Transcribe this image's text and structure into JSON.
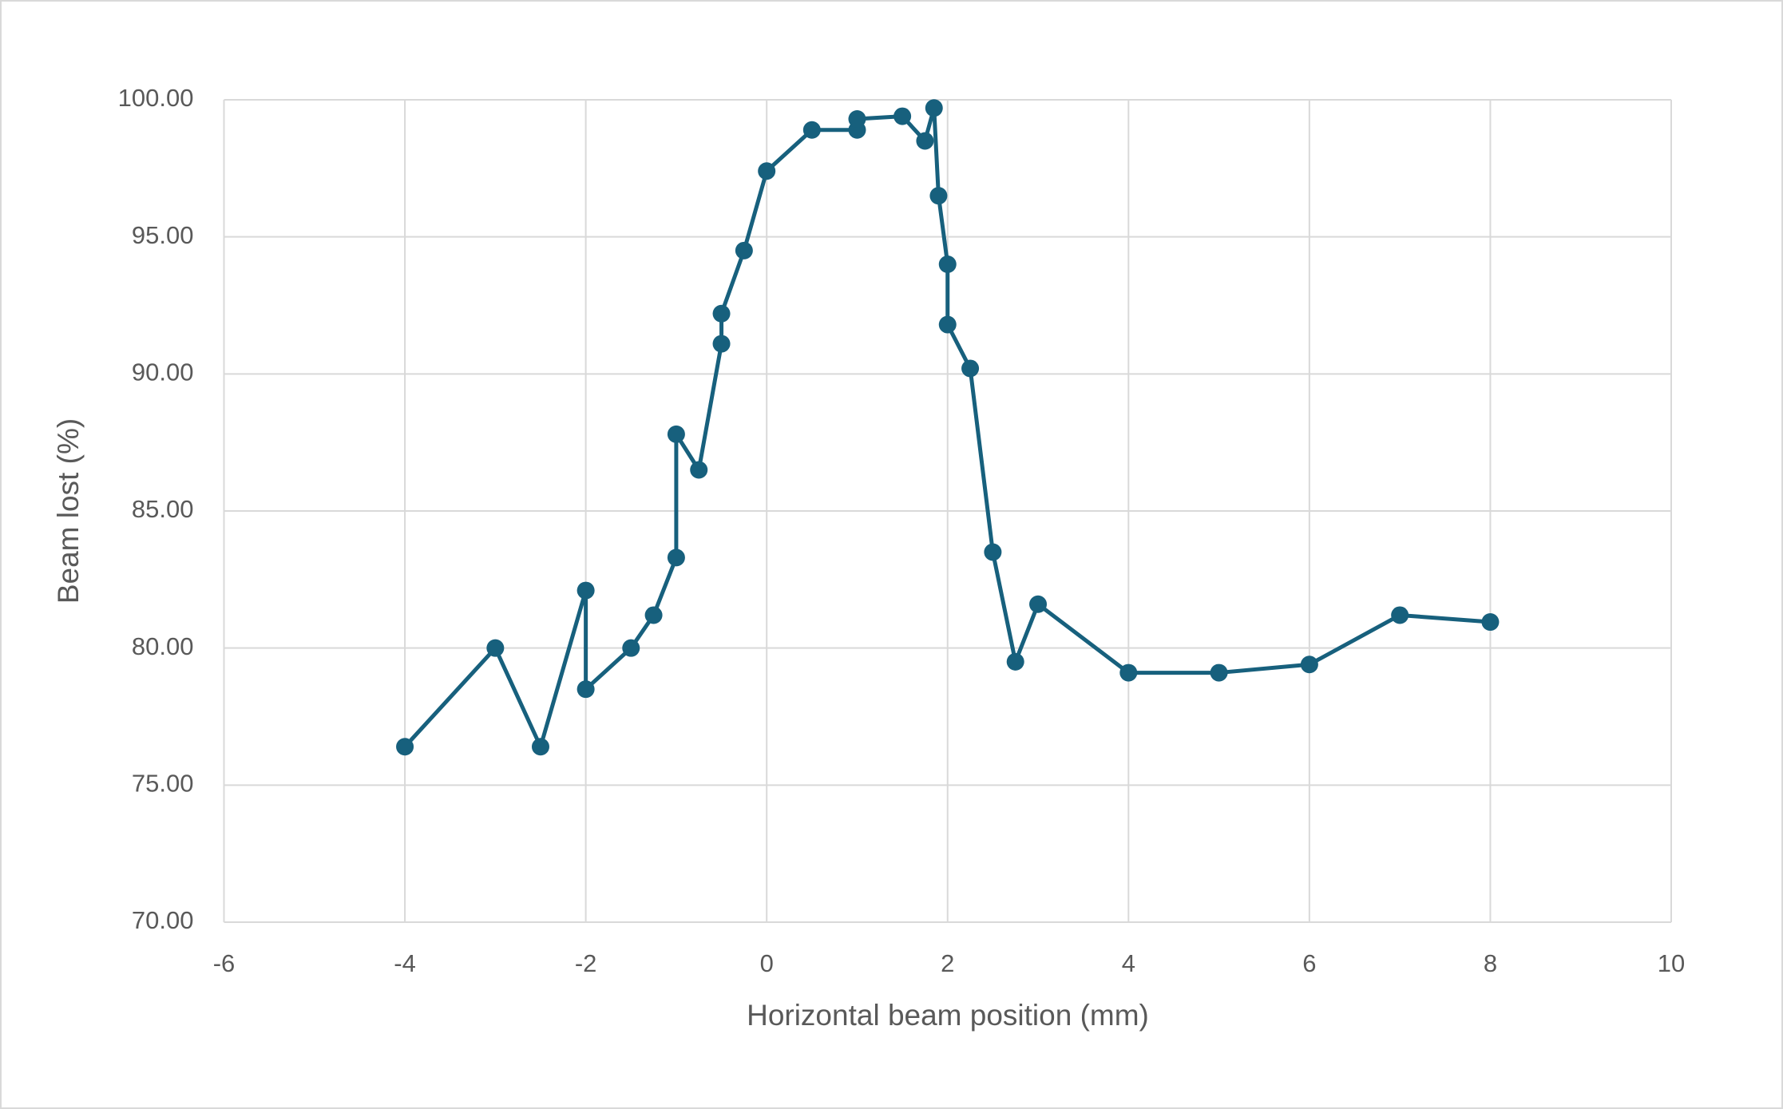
{
  "chart_data": {
    "type": "scatter",
    "x_label": "Horizontal beam position (mm)",
    "y_label": "Beam lost (%)",
    "x": [
      -4,
      -3,
      -2.5,
      -2,
      -2,
      -1.5,
      -1.25,
      -1,
      -1,
      -0.75,
      -0.5,
      -0.5,
      -0.25,
      0,
      0.5,
      1,
      1,
      1.5,
      1.75,
      1.85,
      1.9,
      2,
      2,
      2.25,
      2.5,
      2.75,
      3,
      4,
      5,
      6,
      7,
      8
    ],
    "values": [
      76.4,
      80.0,
      76.4,
      82.1,
      78.5,
      80.0,
      81.2,
      83.3,
      87.8,
      86.5,
      91.1,
      92.2,
      94.5,
      97.4,
      98.9,
      98.9,
      99.3,
      99.4,
      98.5,
      99.7,
      96.5,
      94.0,
      91.8,
      90.2,
      83.5,
      79.5,
      81.6,
      79.1,
      79.1,
      79.4,
      81.2,
      80.95
    ],
    "color": "#17607d",
    "xlim": [
      -6,
      10
    ],
    "xticks": [
      -6,
      -4,
      -2,
      0,
      2,
      4,
      6,
      8,
      10
    ],
    "ylim": [
      70,
      100
    ],
    "yticks": [
      {
        "value": 70,
        "label": "70.00"
      },
      {
        "value": 75,
        "label": "75.00"
      },
      {
        "value": 80,
        "label": "80.00"
      },
      {
        "value": 85,
        "label": "85.00"
      },
      {
        "value": 90,
        "label": "90.00"
      },
      {
        "value": 95,
        "label": "95.00"
      },
      {
        "value": 100,
        "label": "100.00"
      }
    ],
    "grid": true
  }
}
